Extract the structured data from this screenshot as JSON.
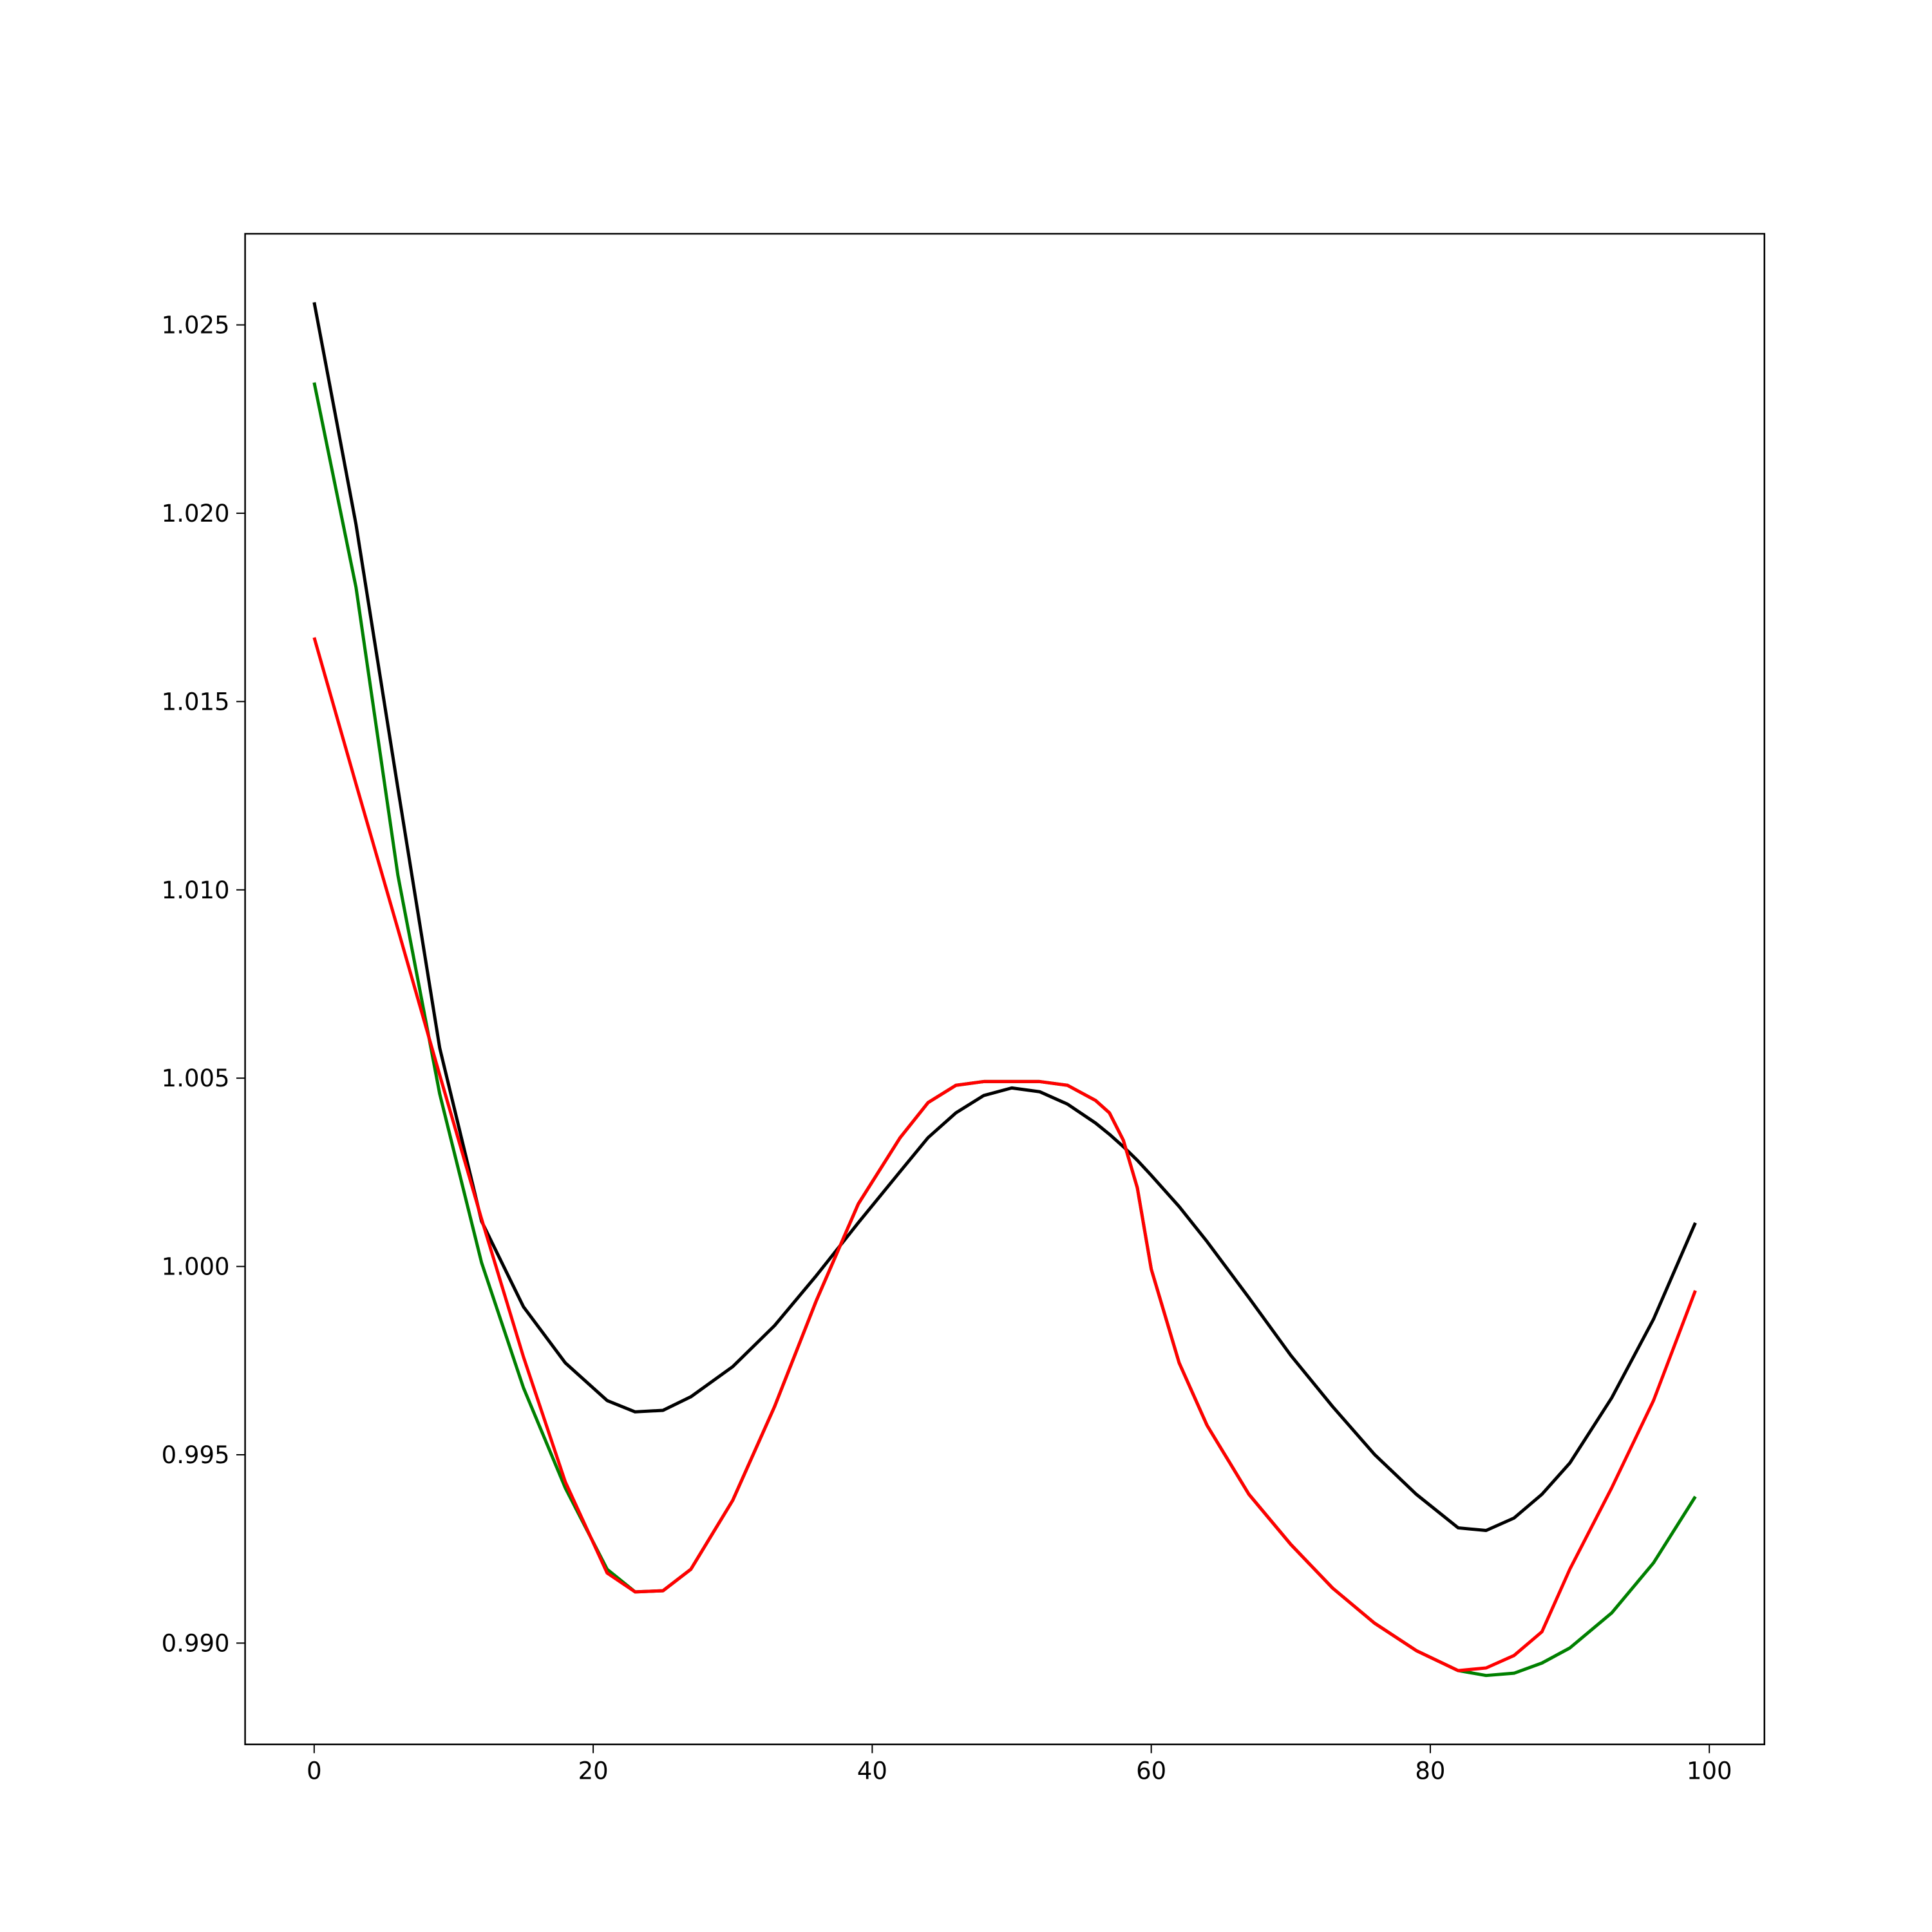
{
  "chart_data": {
    "type": "line",
    "x": [
      0,
      3,
      6,
      9,
      12,
      15,
      18,
      21,
      23,
      25,
      27,
      30,
      33,
      36,
      39,
      42,
      44,
      46,
      48,
      50,
      52,
      54,
      56,
      57,
      58,
      59,
      60,
      62,
      64,
      67,
      70,
      73,
      76,
      79,
      82,
      84,
      86,
      88,
      90,
      93,
      96,
      99
    ],
    "series": [
      {
        "color": "#000000",
        "values": [
          1.0256,
          1.0197,
          1.0127,
          1.0058,
          1.0012,
          0.99893,
          0.99744,
          0.99644,
          0.99614,
          0.99618,
          0.99654,
          0.99734,
          0.99843,
          0.99976,
          1.00116,
          1.00252,
          1.00342,
          1.00408,
          1.00454,
          1.00474,
          1.00464,
          1.00431,
          1.00381,
          1.00351,
          1.00318,
          1.00282,
          1.00242,
          1.00159,
          1.00066,
          0.99917,
          0.99764,
          0.99628,
          0.99501,
          0.99395,
          0.99306,
          0.99299,
          0.99332,
          0.99395,
          0.99478,
          0.99651,
          0.9986,
          1.00116
        ]
      },
      {
        "color": "#008000",
        "values": [
          1.02347,
          1.01803,
          1.01039,
          1.00458,
          1.0001,
          0.99678,
          0.99412,
          0.99196,
          0.99136,
          0.99139,
          0.99196,
          0.99379,
          0.99628,
          0.9991,
          1.00166,
          1.00342,
          1.00435,
          1.00481,
          1.00491,
          1.00491,
          1.00491,
          1.00481,
          1.00441,
          1.00408,
          1.00335,
          1.00209,
          0.99993,
          0.99744,
          0.99578,
          0.99395,
          0.99262,
          0.99146,
          0.99053,
          0.9898,
          0.98927,
          0.98914,
          0.9892,
          0.98947,
          0.98987,
          0.9908,
          0.99213,
          0.99389
        ]
      },
      {
        "color": "#ff0000",
        "values": [
          1.0167,
          1.01281,
          1.00896,
          1.00508,
          1.00126,
          0.9976,
          0.99428,
          0.99186,
          0.99136,
          0.99139,
          0.99196,
          0.99379,
          0.99628,
          0.9991,
          1.00166,
          1.00342,
          1.00435,
          1.00481,
          1.00491,
          1.00491,
          1.00491,
          1.00481,
          1.00441,
          1.00408,
          1.00335,
          1.00209,
          0.99993,
          0.99744,
          0.99578,
          0.99395,
          0.99262,
          0.99146,
          0.99053,
          0.9898,
          0.98927,
          0.98934,
          0.98967,
          0.9903,
          0.99196,
          0.99412,
          0.99644,
          0.99936
        ]
      }
    ],
    "xlim": [
      -4.95,
      103.95
    ],
    "ylim": [
      0.98731,
      1.02742
    ],
    "xticks": [
      0,
      20,
      40,
      60,
      80,
      100
    ],
    "yticks": [
      {
        "value": 0.99,
        "label": "0.990"
      },
      0.995,
      {
        "value": 1,
        "label": "1.000"
      },
      1.005,
      {
        "value": 1.01,
        "label": "1.010"
      },
      1.015,
      {
        "value": 1.02,
        "label": "1.020"
      },
      1.025
    ]
  }
}
